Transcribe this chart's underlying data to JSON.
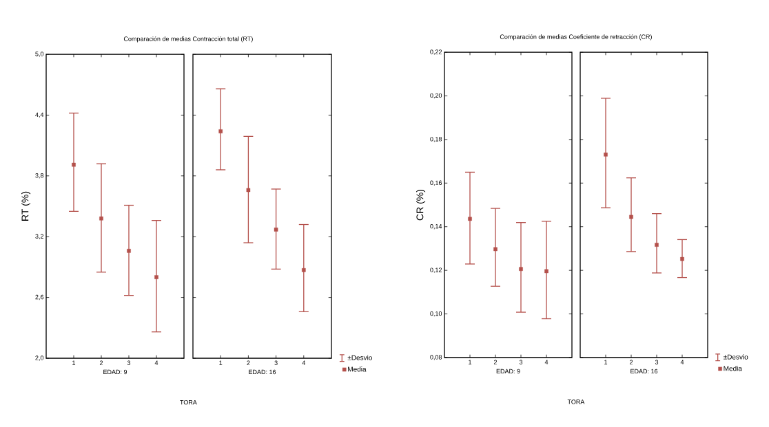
{
  "chart_data": [
    {
      "type": "scatter",
      "title": "Comparación de medias Contracción total (RT)",
      "xlabel": "EDAD: 9",
      "ylabel": "RT (%)",
      "annotations": [
        "TORA"
      ],
      "categories": [
        "1",
        "2",
        "3",
        "4"
      ],
      "ylim": [
        2.0,
        5.0
      ],
      "yticks": [
        {
          "value": 2.0,
          "label": "2,0"
        },
        {
          "value": 2.6,
          "label": "2,6"
        },
        {
          "value": 3.2,
          "label": "3,2"
        },
        {
          "value": 3.8,
          "label": "3,8"
        },
        {
          "value": 4.4,
          "label": "4,4"
        },
        {
          "value": 5.0,
          "label": "5,0"
        }
      ],
      "marker": "square",
      "series": [
        {
          "color": "#b4504b",
          "values": [
            3.91,
            3.38,
            3.06,
            2.8
          ],
          "errors": [
            [
              3.45,
              4.42
            ],
            [
              2.85,
              3.92
            ],
            [
              2.62,
              3.51
            ],
            [
              2.26,
              3.36
            ]
          ]
        }
      ]
    },
    {
      "type": "scatter",
      "xlabel": "EDAD: 16",
      "annotations": [
        "±Desvio"
      ],
      "categories": [
        "1",
        "2",
        "3",
        "4"
      ],
      "ylim": [
        2.0,
        5.0
      ],
      "yticks": [
        {
          "value": 2.0,
          "label": null
        },
        {
          "value": 2.6,
          "label": null
        },
        {
          "value": 3.2,
          "label": null
        },
        {
          "value": 3.8,
          "label": null
        },
        {
          "value": 4.4,
          "label": null
        },
        {
          "value": 5.0,
          "label": null
        }
      ],
      "marker": "square",
      "tick_labels": "x",
      "legend": "bottom right",
      "series": [
        {
          "name": "Media",
          "color": "#b4504b",
          "values": [
            4.24,
            3.66,
            3.27,
            2.87
          ],
          "errors": [
            [
              3.86,
              4.66
            ],
            [
              3.14,
              4.19
            ],
            [
              2.88,
              3.67
            ],
            [
              2.46,
              3.32
            ]
          ]
        }
      ]
    },
    {
      "type": "scatter",
      "title": "Comparación de medias  Coeficiente de retracción (CR)",
      "xlabel": "EDAD: 9",
      "ylabel": "CR (%)",
      "annotations": [
        "TORA"
      ],
      "categories": [
        "1",
        "2",
        "3",
        "4"
      ],
      "ylim": [
        0.08,
        0.22
      ],
      "yticks": [
        {
          "value": 0.08,
          "label": "0,08"
        },
        {
          "value": 0.1,
          "label": "0,10"
        },
        {
          "value": 0.12,
          "label": "0,12"
        },
        {
          "value": 0.14,
          "label": "0,14"
        },
        {
          "value": 0.16,
          "label": "0,16"
        },
        {
          "value": 0.18,
          "label": "0,18"
        },
        {
          "value": 0.2,
          "label": "0,20"
        },
        {
          "value": 0.22,
          "label": "0,22"
        }
      ],
      "marker": "square",
      "series": [
        {
          "color": "#b4504b",
          "values": [
            0.1436,
            0.1297,
            0.1206,
            0.1196
          ],
          "errors": [
            [
              0.1229,
              0.165
            ],
            [
              0.1127,
              0.1484
            ],
            [
              0.1008,
              0.1419
            ],
            [
              0.0978,
              0.1425
            ]
          ]
        }
      ]
    },
    {
      "type": "scatter",
      "xlabel": "EDAD: 16",
      "annotations": [
        "±Desvio"
      ],
      "categories": [
        "1",
        "2",
        "3",
        "4"
      ],
      "ylim": [
        0.08,
        0.22
      ],
      "yticks": [
        {
          "value": 0.08,
          "label": null
        },
        {
          "value": 0.1,
          "label": null
        },
        {
          "value": 0.12,
          "label": null
        },
        {
          "value": 0.14,
          "label": null
        },
        {
          "value": 0.16,
          "label": null
        },
        {
          "value": 0.18,
          "label": null
        },
        {
          "value": 0.2,
          "label": null
        },
        {
          "value": 0.22,
          "label": null
        }
      ],
      "marker": "square",
      "tick_labels": "x",
      "legend": "bottom right",
      "series": [
        {
          "name": "Media",
          "color": "#b4504b",
          "values": [
            0.1731,
            0.1445,
            0.1317,
            0.1252
          ],
          "errors": [
            [
              0.1487,
              0.1989
            ],
            [
              0.1286,
              0.1624
            ],
            [
              0.1188,
              0.146
            ],
            [
              0.1167,
              0.1341
            ]
          ]
        }
      ]
    }
  ]
}
